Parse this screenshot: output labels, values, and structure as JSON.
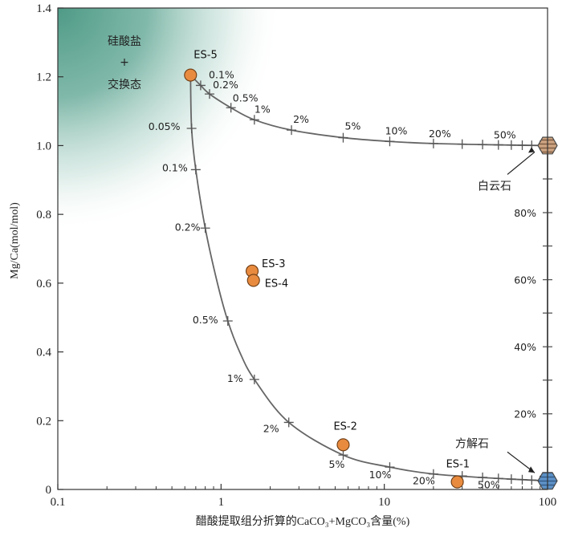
{
  "chart_data": {
    "type": "scatter",
    "xscale": "log",
    "xlim": [
      0.1,
      100
    ],
    "ylim": [
      0,
      1.4
    ],
    "xlabel": "醋酸提取组分折算的CaCO₃+MgCO₃含量(%)",
    "ylabel": "Mg/Ca(mol/mol)",
    "x_ticks": [
      "0.1",
      "1",
      "10",
      "100"
    ],
    "y_ticks": [
      "0",
      "0.2",
      "0.4",
      "0.6",
      "0.8",
      "1.0",
      "1.2",
      "1.4"
    ],
    "region_label": {
      "line1": "硅酸盐",
      "line2": "+",
      "line3": "交换态"
    },
    "endmembers": [
      {
        "name": "dolomite",
        "label": "白云石",
        "x": 100,
        "y": 1.0,
        "color": "#c9a07e"
      },
      {
        "name": "calcite",
        "label": "方解石",
        "x": 100,
        "y": 0.025,
        "color": "#5b8fc4"
      }
    ],
    "samples": [
      {
        "name": "ES-1",
        "x": 28,
        "y": 0.022
      },
      {
        "name": "ES-2",
        "x": 5.6,
        "y": 0.13
      },
      {
        "name": "ES-3",
        "x": 1.55,
        "y": 0.635
      },
      {
        "name": "ES-4",
        "x": 1.58,
        "y": 0.608
      },
      {
        "name": "ES-5",
        "x": 0.65,
        "y": 1.205
      }
    ],
    "series": [
      {
        "name": "silicate-dolomite mixing",
        "points": [
          {
            "x": 0.65,
            "y": 1.205
          },
          {
            "x": 0.75,
            "y": 1.175
          },
          {
            "x": 0.85,
            "y": 1.15
          },
          {
            "x": 1.15,
            "y": 1.11
          },
          {
            "x": 1.6,
            "y": 1.075
          },
          {
            "x": 2.7,
            "y": 1.045
          },
          {
            "x": 5.6,
            "y": 1.023
          },
          {
            "x": 10.8,
            "y": 1.012
          },
          {
            "x": 20,
            "y": 1.006
          },
          {
            "x": 50,
            "y": 1.002
          },
          {
            "x": 100,
            "y": 1.0
          }
        ],
        "ticks": [
          0.75,
          0.85,
          1.15,
          1.6,
          2.7,
          5.6,
          10.8,
          20,
          30,
          40,
          50,
          60,
          70,
          80,
          90
        ],
        "labels": [
          {
            "text": "0.1%",
            "x": 0.75,
            "y": 1.175
          },
          {
            "text": "0.2%",
            "x": 0.85,
            "y": 1.15
          },
          {
            "text": "0.5%",
            "x": 1.15,
            "y": 1.11
          },
          {
            "text": "1%",
            "x": 1.6,
            "y": 1.075
          },
          {
            "text": "2%",
            "x": 2.7,
            "y": 1.045
          },
          {
            "text": "5%",
            "x": 5.6,
            "y": 1.023
          },
          {
            "text": "10%",
            "x": 10.8,
            "y": 1.012
          },
          {
            "text": "20%",
            "x": 20,
            "y": 1.006
          },
          {
            "text": "50%",
            "x": 50,
            "y": 1.002
          }
        ]
      },
      {
        "name": "silicate-calcite mixing",
        "points": [
          {
            "x": 0.65,
            "y": 1.205
          },
          {
            "x": 0.66,
            "y": 1.05
          },
          {
            "x": 0.7,
            "y": 0.93
          },
          {
            "x": 0.8,
            "y": 0.76
          },
          {
            "x": 0.95,
            "y": 0.6
          },
          {
            "x": 1.1,
            "y": 0.49
          },
          {
            "x": 1.3,
            "y": 0.4
          },
          {
            "x": 1.6,
            "y": 0.32
          },
          {
            "x": 2.6,
            "y": 0.195
          },
          {
            "x": 5.6,
            "y": 0.1
          },
          {
            "x": 10.8,
            "y": 0.065
          },
          {
            "x": 20,
            "y": 0.045
          },
          {
            "x": 50,
            "y": 0.032
          },
          {
            "x": 100,
            "y": 0.025
          }
        ],
        "ticks": [
          0.66,
          0.7,
          0.8,
          1.1,
          1.6,
          2.6,
          5.6,
          10.8,
          20,
          30,
          40,
          50,
          60,
          70,
          80,
          90
        ],
        "labels": [
          {
            "text": "0.05%",
            "x": 0.66,
            "y": 1.05
          },
          {
            "text": "0.1%",
            "x": 0.7,
            "y": 0.93
          },
          {
            "text": "0.2%",
            "x": 0.8,
            "y": 0.76
          },
          {
            "text": "0.5%",
            "x": 1.1,
            "y": 0.49
          },
          {
            "text": "1%",
            "x": 1.6,
            "y": 0.32
          },
          {
            "text": "2%",
            "x": 2.6,
            "y": 0.195
          },
          {
            "text": "5%",
            "x": 5.6,
            "y": 0.1
          },
          {
            "text": "10%",
            "x": 10.8,
            "y": 0.065
          },
          {
            "text": "20%",
            "x": 20,
            "y": 0.045
          },
          {
            "text": "50%",
            "x": 50,
            "y": 0.032
          }
        ]
      },
      {
        "name": "dolomite-calcite mixing",
        "points": [
          {
            "x": 100,
            "y": 1.0
          },
          {
            "x": 100,
            "y": 0.025
          }
        ],
        "ticks_y": [
          0.123,
          0.22,
          0.318,
          0.415,
          0.513,
          0.61,
          0.708,
          0.805,
          0.903
        ],
        "labels": [
          {
            "text": "20%",
            "y": 0.22
          },
          {
            "text": "40%",
            "y": 0.415
          },
          {
            "text": "60%",
            "y": 0.61
          },
          {
            "text": "80%",
            "y": 0.805
          }
        ]
      }
    ]
  }
}
